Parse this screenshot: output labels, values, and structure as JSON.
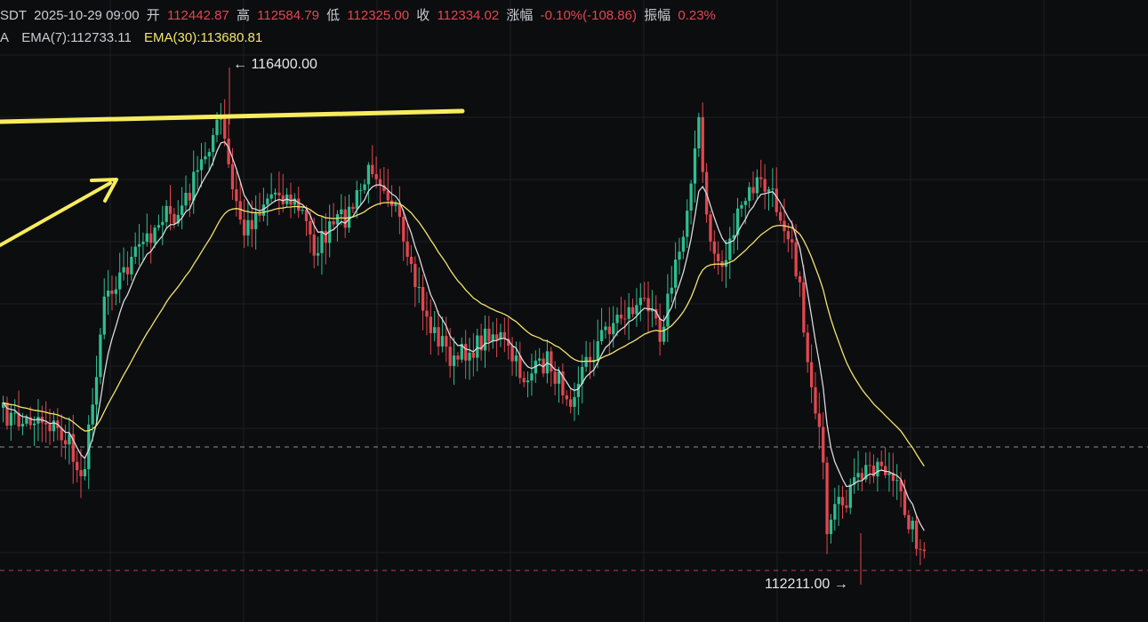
{
  "info": {
    "pair_fragment": "SDT",
    "datetime": "2025-10-29 09:00",
    "open_label": "开",
    "open": "112442.87",
    "high_label": "高",
    "high": "112584.79",
    "low_label": "低",
    "low": "112325.00",
    "close_label": "收",
    "close": "112334.02",
    "change_label": "涨幅",
    "change": "-0.10%(-108.86)",
    "amplitude_label": "振幅",
    "amplitude": "0.23%"
  },
  "ema": {
    "prefix": "A",
    "ema7": "EMA(7):112733.11",
    "ema30": "EMA(30):113680.81"
  },
  "markers": {
    "high": "116400.00",
    "low": "112211.00"
  },
  "colors": {
    "background": "#0c0d0f",
    "up": "#2fbd8f",
    "down": "#e0474f",
    "ema7": "#d8dadf",
    "ema30": "#f3e46c",
    "annotation": "#f7ec5e",
    "grid": "#1d2025"
  },
  "chart_data": {
    "type": "candlestick",
    "price_range": [
      112100,
      116650
    ],
    "high_marker": 116400.0,
    "low_marker": 112211.0,
    "close_price": 112334.02,
    "series": [
      {
        "name": "EMA(7)",
        "last": 112733.11
      },
      {
        "name": "EMA(30)",
        "last": 113680.81
      }
    ]
  }
}
